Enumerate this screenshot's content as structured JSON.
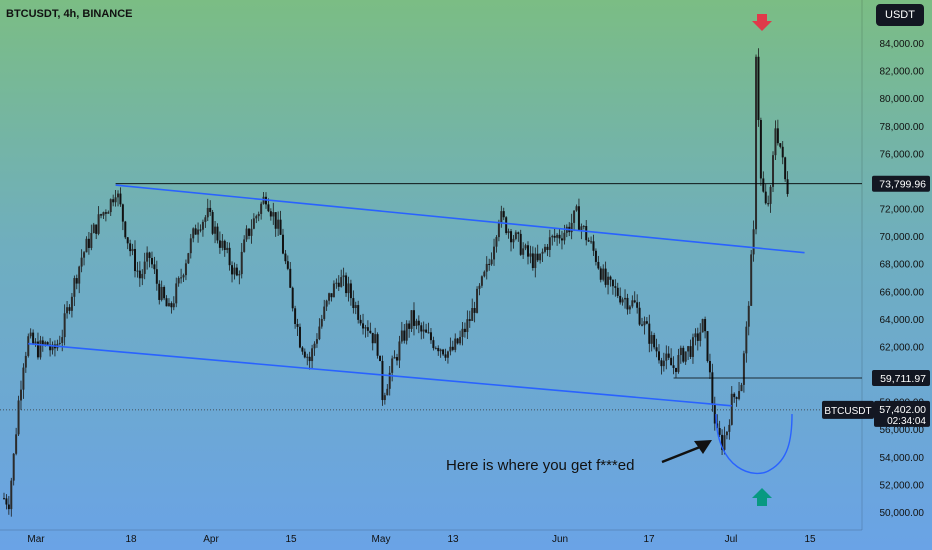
{
  "header": {
    "symbol": "BTCUSDT, 4h, BINANCE"
  },
  "currency_button": "USDT",
  "chart_data": {
    "type": "candlestick",
    "title": "BTCUSDT, 4h, BINANCE",
    "x_ticks": [
      "Mar",
      "18",
      "Apr",
      "15",
      "May",
      "13",
      "Jun",
      "17",
      "Jul",
      "15"
    ],
    "y_ticks": [
      "50,000.00",
      "52,000.00",
      "54,000.00",
      "56,000.00",
      "58,000.00",
      "60,000.00",
      "62,000.00",
      "64,000.00",
      "66,000.00",
      "68,000.00",
      "70,000.00",
      "72,000.00",
      "74,000.00",
      "76,000.00",
      "78,000.00",
      "80,000.00",
      "82,000.00",
      "84,000.00"
    ],
    "ylim": [
      49500,
      85000
    ],
    "price_path": [
      [
        0,
        51000
      ],
      [
        2,
        50800
      ],
      [
        4,
        54000
      ],
      [
        6,
        58000
      ],
      [
        8,
        61000
      ],
      [
        10,
        62500
      ],
      [
        14,
        61800
      ],
      [
        18,
        62200
      ],
      [
        20,
        61500
      ],
      [
        24,
        63000
      ],
      [
        28,
        66000
      ],
      [
        32,
        68500
      ],
      [
        36,
        70000
      ],
      [
        40,
        71500
      ],
      [
        44,
        72500
      ],
      [
        46,
        73500
      ],
      [
        48,
        72000
      ],
      [
        52,
        69000
      ],
      [
        56,
        67000
      ],
      [
        60,
        68500
      ],
      [
        64,
        66000
      ],
      [
        68,
        64500
      ],
      [
        72,
        66500
      ],
      [
        76,
        69000
      ],
      [
        80,
        71000
      ],
      [
        84,
        71500
      ],
      [
        88,
        70000
      ],
      [
        92,
        68500
      ],
      [
        96,
        67000
      ],
      [
        100,
        70000
      ],
      [
        104,
        71500
      ],
      [
        108,
        73000
      ],
      [
        110,
        72000
      ],
      [
        114,
        70000
      ],
      [
        118,
        66000
      ],
      [
        122,
        62500
      ],
      [
        126,
        61000
      ],
      [
        130,
        63500
      ],
      [
        134,
        65500
      ],
      [
        138,
        67000
      ],
      [
        142,
        66000
      ],
      [
        146,
        64500
      ],
      [
        150,
        63500
      ],
      [
        154,
        62000
      ],
      [
        156,
        58500
      ],
      [
        160,
        60500
      ],
      [
        164,
        62500
      ],
      [
        168,
        64000
      ],
      [
        172,
        63000
      ],
      [
        176,
        62500
      ],
      [
        180,
        62000
      ],
      [
        184,
        61500
      ],
      [
        188,
        62500
      ],
      [
        192,
        64000
      ],
      [
        196,
        66000
      ],
      [
        200,
        68000
      ],
      [
        204,
        71500
      ],
      [
        208,
        70500
      ],
      [
        212,
        69500
      ],
      [
        216,
        68500
      ],
      [
        220,
        68000
      ],
      [
        224,
        69500
      ],
      [
        228,
        70000
      ],
      [
        232,
        70500
      ],
      [
        236,
        71500
      ],
      [
        240,
        70000
      ],
      [
        244,
        68500
      ],
      [
        248,
        66500
      ],
      [
        252,
        66000
      ],
      [
        256,
        65500
      ],
      [
        260,
        65000
      ],
      [
        264,
        63500
      ],
      [
        268,
        62000
      ],
      [
        272,
        61000
      ],
      [
        276,
        60500
      ],
      [
        280,
        61500
      ],
      [
        284,
        62000
      ],
      [
        288,
        63500
      ],
      [
        290,
        61500
      ],
      [
        292,
        58000
      ],
      [
        294,
        55500
      ],
      [
        296,
        55000
      ],
      [
        298,
        56000
      ],
      [
        300,
        58000
      ],
      [
        304,
        59500
      ],
      [
        306,
        63000
      ],
      [
        308,
        68000
      ],
      [
        309,
        70000
      ],
      [
        310,
        83500
      ],
      [
        312,
        74000
      ],
      [
        314,
        72000
      ],
      [
        316,
        73000
      ],
      [
        318,
        78000
      ],
      [
        320,
        76500
      ],
      [
        322,
        74000
      ],
      [
        324,
        73000
      ]
    ],
    "n_bars": 324,
    "channel_upper": [
      [
        46,
        73700
      ],
      [
        330,
        68800
      ]
    ],
    "channel_lower": [
      [
        10,
        62200
      ],
      [
        300,
        57700
      ]
    ],
    "level_73799": {
      "value": 73799.96,
      "from_bar": 46
    },
    "level_59711": {
      "value": 59711.97,
      "from_bar": 276
    },
    "current_price": 57402.0,
    "timer": "02:34:04",
    "labels": {
      "level_73799": "73,799.96",
      "level_59711": "59,711.97",
      "symbol_tag": "BTCUSDT",
      "current_price": "57,402.00",
      "timer": "02:34:04"
    },
    "annotation": "Here is where you get f***ed",
    "colors": {
      "channel": "#2962ff",
      "down_arrow": "#e03a4a",
      "up_arrow": "#089981",
      "candle": "#1a1a1a",
      "level": "#000000",
      "curve": "#2962ff"
    }
  }
}
